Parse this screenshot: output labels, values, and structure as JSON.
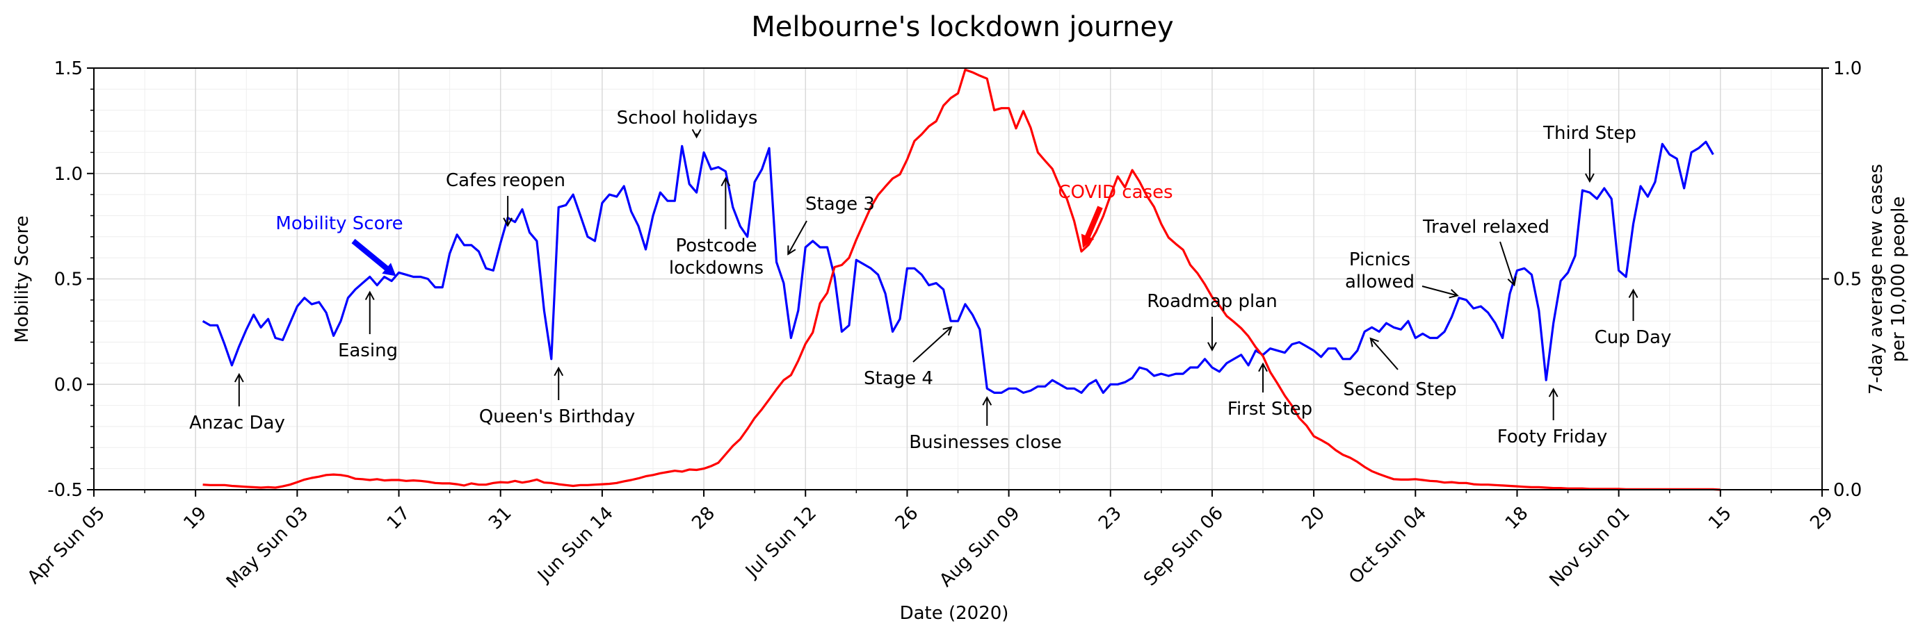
{
  "chart_data": {
    "type": "line",
    "title": "Melbourne's lockdown journey",
    "xlabel": "Date (2020)",
    "ylabel_left": "Mobility Score",
    "ylabel_right": [
      "7-day average new cases",
      "per 10,000 people"
    ],
    "xlim": [
      "2020-04-05",
      "2020-11-29"
    ],
    "ylim_left": [
      -0.5,
      1.5
    ],
    "ylim_right": [
      0.0,
      1.0
    ],
    "grid": true,
    "colors": {
      "mobility": "#0000ff",
      "covid": "#ff0000",
      "axis": "#000000",
      "grid": "#d9d9d9"
    },
    "x_ticks": [
      {
        "date": "2020-04-05",
        "label": "Apr Sun 05"
      },
      {
        "date": "2020-04-19",
        "label": "19"
      },
      {
        "date": "2020-05-03",
        "label": "May Sun 03"
      },
      {
        "date": "2020-05-17",
        "label": "17"
      },
      {
        "date": "2020-05-31",
        "label": "31"
      },
      {
        "date": "2020-06-14",
        "label": "Jun Sun 14"
      },
      {
        "date": "2020-06-28",
        "label": "28"
      },
      {
        "date": "2020-07-12",
        "label": "Jul Sun 12"
      },
      {
        "date": "2020-07-26",
        "label": "26"
      },
      {
        "date": "2020-08-09",
        "label": "Aug Sun 09"
      },
      {
        "date": "2020-08-23",
        "label": "23"
      },
      {
        "date": "2020-09-06",
        "label": "Sep Sun 06"
      },
      {
        "date": "2020-09-20",
        "label": "20"
      },
      {
        "date": "2020-10-04",
        "label": "Oct Sun 04"
      },
      {
        "date": "2020-10-18",
        "label": "18"
      },
      {
        "date": "2020-11-01",
        "label": "Nov Sun 01"
      },
      {
        "date": "2020-11-15",
        "label": "15"
      },
      {
        "date": "2020-11-29",
        "label": "29"
      }
    ],
    "y_ticks_left": [
      {
        "value": -0.5,
        "label": "-0.5"
      },
      {
        "value": 0.0,
        "label": "0.0"
      },
      {
        "value": 0.5,
        "label": "0.5"
      },
      {
        "value": 1.0,
        "label": "1.0"
      },
      {
        "value": 1.5,
        "label": "1.5"
      }
    ],
    "y_ticks_right": [
      {
        "value": 0.0,
        "label": "0.0"
      },
      {
        "value": 0.5,
        "label": "0.5"
      },
      {
        "value": 1.0,
        "label": "1.0"
      }
    ],
    "series": [
      {
        "name": "Mobility Score",
        "axis": "left",
        "start_date": "2020-04-20",
        "values": [
          0.3,
          0.28,
          0.28,
          0.19,
          0.09,
          0.18,
          0.26,
          0.33,
          0.27,
          0.31,
          0.22,
          0.21,
          0.29,
          0.37,
          0.41,
          0.38,
          0.39,
          0.34,
          0.23,
          0.3,
          0.41,
          0.45,
          0.48,
          0.51,
          0.47,
          0.51,
          0.49,
          0.53,
          0.52,
          0.51,
          0.51,
          0.5,
          0.46,
          0.46,
          0.62,
          0.71,
          0.66,
          0.66,
          0.63,
          0.55,
          0.54,
          0.67,
          0.79,
          0.77,
          0.83,
          0.72,
          0.68,
          0.35,
          0.12,
          0.84,
          0.85,
          0.9,
          0.8,
          0.7,
          0.68,
          0.86,
          0.9,
          0.89,
          0.94,
          0.82,
          0.75,
          0.64,
          0.8,
          0.91,
          0.87,
          0.87,
          1.13,
          0.95,
          0.91,
          1.1,
          1.02,
          1.03,
          1.01,
          0.84,
          0.75,
          0.7,
          0.96,
          1.02,
          1.12,
          0.58,
          0.48,
          0.22,
          0.35,
          0.65,
          0.68,
          0.65,
          0.65,
          0.51,
          0.25,
          0.28,
          0.59,
          0.57,
          0.55,
          0.52,
          0.43,
          0.25,
          0.31,
          0.55,
          0.55,
          0.52,
          0.47,
          0.48,
          0.45,
          0.3,
          0.3,
          0.38,
          0.33,
          0.26,
          -0.02,
          -0.04,
          -0.04,
          -0.02,
          -0.02,
          -0.04,
          -0.03,
          -0.01,
          -0.01,
          0.02,
          0.0,
          -0.02,
          -0.02,
          -0.04,
          0.0,
          0.02,
          -0.04,
          0.0,
          0.0,
          0.01,
          0.03,
          0.08,
          0.07,
          0.04,
          0.05,
          0.04,
          0.05,
          0.05,
          0.08,
          0.08,
          0.12,
          0.08,
          0.06,
          0.1,
          0.12,
          0.14,
          0.09,
          0.16,
          0.14,
          0.17,
          0.16,
          0.15,
          0.19,
          0.2,
          0.18,
          0.16,
          0.13,
          0.17,
          0.17,
          0.12,
          0.12,
          0.16,
          0.25,
          0.27,
          0.25,
          0.29,
          0.27,
          0.26,
          0.3,
          0.22,
          0.24,
          0.22,
          0.22,
          0.25,
          0.32,
          0.41,
          0.4,
          0.36,
          0.37,
          0.34,
          0.29,
          0.22,
          0.43,
          0.54,
          0.55,
          0.52,
          0.35,
          0.02,
          0.29,
          0.49,
          0.53,
          0.61,
          0.92,
          0.91,
          0.88,
          0.93,
          0.88,
          0.54,
          0.51,
          0.76,
          0.94,
          0.89,
          0.96,
          1.14,
          1.09,
          1.07,
          0.93,
          1.1,
          1.12,
          1.15,
          1.09
        ]
      },
      {
        "name": "COVID cases",
        "axis": "right",
        "start_date": "2020-04-20",
        "values": [
          0.012,
          0.011,
          0.011,
          0.011,
          0.009,
          0.008,
          0.007,
          0.006,
          0.005,
          0.006,
          0.005,
          0.008,
          0.012,
          0.018,
          0.024,
          0.028,
          0.031,
          0.035,
          0.036,
          0.035,
          0.032,
          0.026,
          0.025,
          0.023,
          0.025,
          0.022,
          0.023,
          0.023,
          0.021,
          0.022,
          0.021,
          0.019,
          0.016,
          0.015,
          0.015,
          0.013,
          0.01,
          0.015,
          0.012,
          0.012,
          0.016,
          0.018,
          0.017,
          0.021,
          0.017,
          0.02,
          0.024,
          0.017,
          0.016,
          0.013,
          0.011,
          0.009,
          0.011,
          0.011,
          0.012,
          0.013,
          0.014,
          0.016,
          0.02,
          0.023,
          0.027,
          0.032,
          0.035,
          0.039,
          0.042,
          0.045,
          0.043,
          0.048,
          0.047,
          0.05,
          0.056,
          0.064,
          0.084,
          0.104,
          0.12,
          0.144,
          0.17,
          0.191,
          0.214,
          0.238,
          0.26,
          0.272,
          0.306,
          0.346,
          0.373,
          0.442,
          0.467,
          0.528,
          0.533,
          0.55,
          0.593,
          0.632,
          0.67,
          0.699,
          0.719,
          0.738,
          0.748,
          0.783,
          0.827,
          0.843,
          0.862,
          0.874,
          0.911,
          0.929,
          0.94,
          0.996,
          0.99,
          0.982,
          0.975,
          0.9,
          0.905,
          0.905,
          0.857,
          0.898,
          0.859,
          0.8,
          0.78,
          0.761,
          0.72,
          0.69,
          0.637,
          0.565,
          0.581,
          0.611,
          0.649,
          0.698,
          0.743,
          0.717,
          0.758,
          0.731,
          0.697,
          0.671,
          0.63,
          0.598,
          0.583,
          0.569,
          0.533,
          0.513,
          0.487,
          0.457,
          0.437,
          0.412,
          0.398,
          0.383,
          0.364,
          0.338,
          0.317,
          0.279,
          0.252,
          0.223,
          0.199,
          0.17,
          0.152,
          0.127,
          0.118,
          0.108,
          0.094,
          0.083,
          0.076,
          0.066,
          0.054,
          0.044,
          0.037,
          0.031,
          0.025,
          0.024,
          0.024,
          0.025,
          0.023,
          0.021,
          0.02,
          0.017,
          0.018,
          0.016,
          0.016,
          0.013,
          0.012,
          0.012,
          0.011,
          0.01,
          0.009,
          0.008,
          0.007,
          0.006,
          0.006,
          0.005,
          0.004,
          0.004,
          0.003,
          0.003,
          0.003,
          0.002,
          0.002,
          0.002,
          0.002,
          0.002,
          0.001,
          0.001,
          0.001,
          0.001,
          0.001,
          0.001,
          0.001,
          0.001,
          0.001,
          0.001,
          0.001,
          0.001,
          0.001,
          0.0
        ]
      }
    ],
    "series_labels": [
      {
        "text": "Mobility Score",
        "color": "#0000ff"
      },
      {
        "text": "COVID cases",
        "color": "#ff0000"
      }
    ],
    "annotations": [
      {
        "lines": [
          "Anzac Day"
        ],
        "date": "2020-04-25",
        "value": 0.09
      },
      {
        "lines": [
          "Easing"
        ],
        "date": "2020-05-13",
        "value": 0.48
      },
      {
        "lines": [
          "Cafes reopen"
        ],
        "date": "2020-06-01",
        "value": 0.71
      },
      {
        "lines": [
          "Queen's Birthday"
        ],
        "date": "2020-06-08",
        "value": 0.12
      },
      {
        "lines": [
          "School holidays"
        ],
        "date": "2020-06-27",
        "value": 1.13
      },
      {
        "lines": [
          "Postcode",
          "lockdowns"
        ],
        "date": "2020-07-01",
        "value": 1.02
      },
      {
        "lines": [
          "Stage 3"
        ],
        "date": "2020-07-09",
        "value": 0.58
      },
      {
        "lines": [
          "Stage 4"
        ],
        "date": "2020-08-02",
        "value": 0.3
      },
      {
        "lines": [
          "Businesses close"
        ],
        "date": "2020-08-06",
        "value": -0.02
      },
      {
        "lines": [
          "Roadmap plan"
        ],
        "date": "2020-09-06",
        "value": 0.12
      },
      {
        "lines": [
          "First Step"
        ],
        "date": "2020-09-13",
        "value": 0.14
      },
      {
        "lines": [
          "Second Step"
        ],
        "date": "2020-09-27",
        "value": 0.25
      },
      {
        "lines": [
          "Picnics",
          "allowed"
        ],
        "date": "2020-10-11",
        "value": 0.41
      },
      {
        "lines": [
          "Travel relaxed"
        ],
        "date": "2020-10-18",
        "value": 0.43
      },
      {
        "lines": [
          "Footy Friday"
        ],
        "date": "2020-10-23",
        "value": 0.02
      },
      {
        "lines": [
          "Third Step"
        ],
        "date": "2020-10-28",
        "value": 0.92
      },
      {
        "lines": [
          "Cup Day"
        ],
        "date": "2020-11-03",
        "value": 0.49
      }
    ]
  }
}
